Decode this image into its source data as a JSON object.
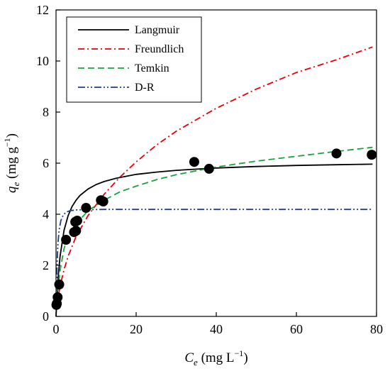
{
  "chart_data": {
    "type": "scatter",
    "xlabel": {
      "symbol": "C",
      "subscript": "e",
      "unit": " (mg L",
      "exp": "−1",
      "close": ")"
    },
    "ylabel": {
      "symbol": "q",
      "subscript": "e",
      "unit": " (mg g",
      "exp": "−1",
      "close": ")"
    },
    "xlim": [
      0,
      80
    ],
    "ylim": [
      0,
      12
    ],
    "xticks": [
      0,
      20,
      40,
      60,
      80
    ],
    "yticks": [
      0,
      2,
      4,
      6,
      8,
      10,
      12
    ],
    "grid": false,
    "legend_position": "top-left",
    "observed_points": [
      [
        0.1,
        0.45
      ],
      [
        0.2,
        0.5
      ],
      [
        0.4,
        0.75
      ],
      [
        0.8,
        1.25
      ],
      [
        2.5,
        3.0
      ],
      [
        4.5,
        3.3
      ],
      [
        5.0,
        3.35
      ],
      [
        4.8,
        3.7
      ],
      [
        5.3,
        3.75
      ],
      [
        7.5,
        4.25
      ],
      [
        11.2,
        4.55
      ],
      [
        11.8,
        4.5
      ],
      [
        34.5,
        6.05
      ],
      [
        38.2,
        5.78
      ],
      [
        70.0,
        6.38
      ],
      [
        78.8,
        6.33
      ]
    ],
    "series": [
      {
        "name": "Langmuir",
        "color": "#000000",
        "dash": "",
        "x": [
          0,
          0.5,
          1,
          2,
          3,
          4,
          5,
          6,
          8,
          10,
          12,
          15,
          20,
          25,
          30,
          40,
          50,
          60,
          70,
          79
        ],
        "y": [
          0,
          1.46,
          2.35,
          3.37,
          3.94,
          4.3,
          4.55,
          4.74,
          4.99,
          5.16,
          5.28,
          5.41,
          5.56,
          5.65,
          5.72,
          5.81,
          5.87,
          5.91,
          5.94,
          5.96
        ]
      },
      {
        "name": "Freundlich",
        "color": "#e8000b",
        "dash": "9,4,2,4",
        "x": [
          0.2,
          0.5,
          1,
          2,
          3,
          5,
          8,
          12,
          16,
          20,
          25,
          30,
          40,
          50,
          60,
          70,
          79
        ],
        "y": [
          0.33,
          0.72,
          1.18,
          1.83,
          2.35,
          3.13,
          3.95,
          4.78,
          5.46,
          6.05,
          6.7,
          7.25,
          8.15,
          8.9,
          9.55,
          10.05,
          10.55
        ]
      },
      {
        "name": "Temkin",
        "color": "#1ea03c",
        "dash": "9,5",
        "x": [
          0.3,
          0.5,
          1,
          2,
          3,
          5,
          8,
          12,
          16,
          20,
          25,
          30,
          40,
          50,
          60,
          70,
          79
        ],
        "y": [
          0.6,
          1.1,
          1.8,
          2.65,
          3.12,
          3.62,
          4.14,
          4.55,
          4.88,
          5.1,
          5.35,
          5.55,
          5.85,
          6.08,
          6.27,
          6.46,
          6.62
        ]
      },
      {
        "name": "D-R",
        "color": "#1f3f88",
        "dash": "10,3,2,3,2,3",
        "x": [
          0.1,
          0.3,
          0.5,
          0.8,
          1.2,
          1.8,
          2.5,
          3.5,
          5,
          8,
          12,
          20,
          40,
          60,
          79
        ],
        "y": [
          1.0,
          2.2,
          2.9,
          3.4,
          3.75,
          3.97,
          4.08,
          4.14,
          4.17,
          4.18,
          4.19,
          4.19,
          4.19,
          4.19,
          4.19
        ]
      }
    ]
  }
}
